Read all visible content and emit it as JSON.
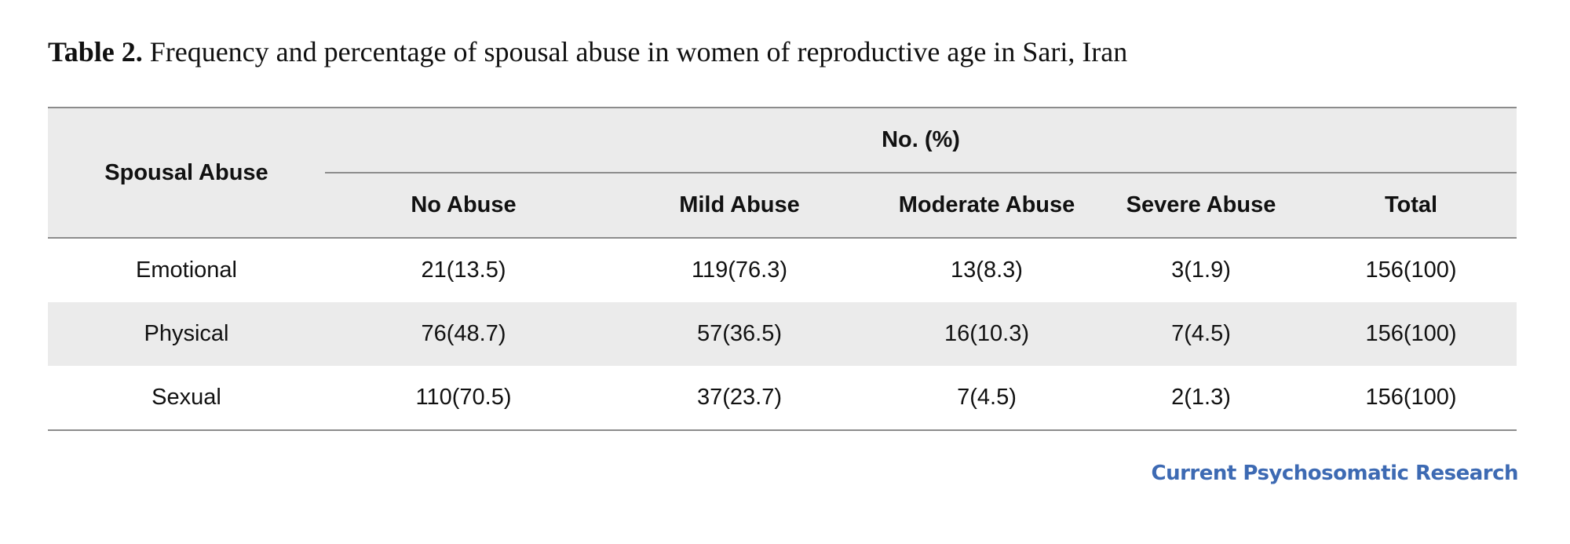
{
  "caption": {
    "label": "Table 2.",
    "text": "Frequency and percentage of spousal abuse in women of reproductive age in Sari, Iran"
  },
  "table": {
    "row_header_label": "Spousal Abuse",
    "group_header": "No. (%)",
    "columns": [
      "No Abuse",
      "Mild Abuse",
      "Moderate Abuse",
      "Severe Abuse",
      "Total"
    ],
    "rows": [
      {
        "label": "Emotional",
        "cells": [
          "21(13.5)",
          "119(76.3)",
          "13(8.3)",
          "3(1.9)",
          "156(100)"
        ]
      },
      {
        "label": "Physical",
        "cells": [
          "76(48.7)",
          "57(36.5)",
          "16(10.3)",
          "7(4.5)",
          "156(100)"
        ]
      },
      {
        "label": "Sexual",
        "cells": [
          "110(70.5)",
          "37(23.7)",
          "7(4.5)",
          "2(1.3)",
          "156(100)"
        ]
      }
    ]
  },
  "footer": {
    "brand": "Current Psychosomatic Research"
  },
  "colors": {
    "header_fill": "#ebebeb",
    "rule": "#8c8c8c",
    "brand": "#3d6ab3"
  }
}
